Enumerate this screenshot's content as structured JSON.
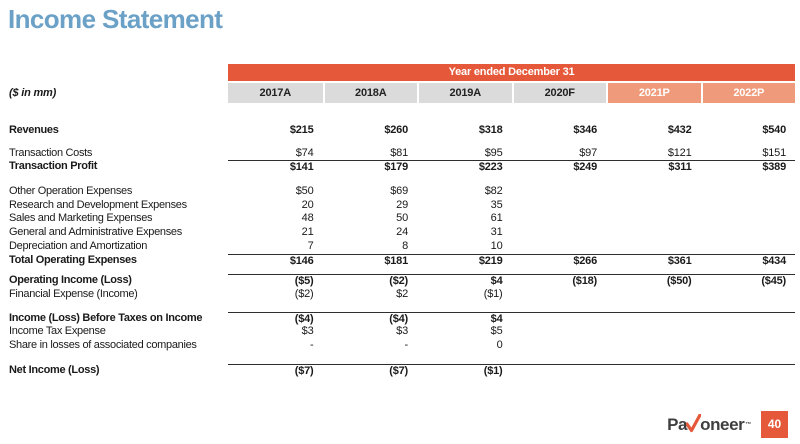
{
  "slide": {
    "title": "Income Statement",
    "page_number": "40",
    "logo": {
      "pre": "Pa",
      "post": "oneer",
      "tm": "™"
    }
  },
  "colors": {
    "title_blue": "#6BA1C7",
    "accent_orange": "#E5583A",
    "projection_orange": "#EF9A7B",
    "header_gray": "#DBDBDB"
  },
  "table": {
    "banner": "Year ended December 31",
    "units_label": "($ in mm)",
    "columns": [
      {
        "label": "2017A",
        "style": "gray"
      },
      {
        "label": "2018A",
        "style": "gray"
      },
      {
        "label": "2019A",
        "style": "gray"
      },
      {
        "label": "2020F",
        "style": "gray"
      },
      {
        "label": "2021P",
        "style": "orange"
      },
      {
        "label": "2022P",
        "style": "orange"
      }
    ],
    "rows": [
      {
        "spacer": 21
      },
      {
        "label": "Revenues",
        "bold": true,
        "values": [
          "$215",
          "$260",
          "$318",
          "$346",
          "$432",
          "$540"
        ]
      },
      {
        "spacer": 9
      },
      {
        "label": "Transaction Costs",
        "values": [
          "$74",
          "$81",
          "$95",
          "$97",
          "$121",
          "$151"
        ]
      },
      {
        "label": "Transaction Profit",
        "bold": true,
        "rule": true,
        "values": [
          "$141",
          "$179",
          "$223",
          "$249",
          "$311",
          "$389"
        ]
      },
      {
        "spacer": 11
      },
      {
        "label": "Other Operation Expenses",
        "values": [
          "$50",
          "$69",
          "$82",
          "",
          "",
          ""
        ]
      },
      {
        "label": "Research and Development Expenses",
        "values": [
          "20",
          "29",
          "35",
          "",
          "",
          ""
        ]
      },
      {
        "label": "Sales and Marketing Expenses",
        "values": [
          "48",
          "50",
          "61",
          "",
          "",
          ""
        ]
      },
      {
        "label": "General and Administrative Expenses",
        "values": [
          "21",
          "24",
          "31",
          "",
          "",
          ""
        ]
      },
      {
        "label": "Depreciation and Amortization",
        "values": [
          "7",
          "8",
          "10",
          "",
          "",
          ""
        ]
      },
      {
        "label": "Total Operating Expenses",
        "bold": true,
        "rule": true,
        "values": [
          "$146",
          "$181",
          "$219",
          "$266",
          "$361",
          "$434"
        ]
      },
      {
        "spacer": 7
      },
      {
        "label": "Operating Income (Loss)",
        "bold": true,
        "rule": true,
        "values": [
          "($5)",
          "($2)",
          "$4",
          "($18)",
          "($50)",
          "($45)"
        ]
      },
      {
        "label": "Financial Expense (Income)",
        "values": [
          "($2)",
          "$2",
          "($1)",
          "",
          "",
          ""
        ]
      },
      {
        "spacer": 10
      },
      {
        "label": "Income (Loss) Before Taxes on Income",
        "bold": true,
        "rule": true,
        "values": [
          "($4)",
          "($4)",
          "$4",
          "",
          "",
          ""
        ]
      },
      {
        "label": "Income Tax Expense",
        "values": [
          "$3",
          "$3",
          "$5",
          "",
          "",
          ""
        ]
      },
      {
        "label": "Share in losses of associated companies",
        "values": [
          "-",
          "-",
          "0",
          "",
          "",
          ""
        ]
      },
      {
        "spacer": 11
      },
      {
        "label": "Net Income (Loss)",
        "bold": true,
        "rule": true,
        "values": [
          "($7)",
          "($7)",
          "($1)",
          "",
          "",
          ""
        ]
      }
    ]
  }
}
